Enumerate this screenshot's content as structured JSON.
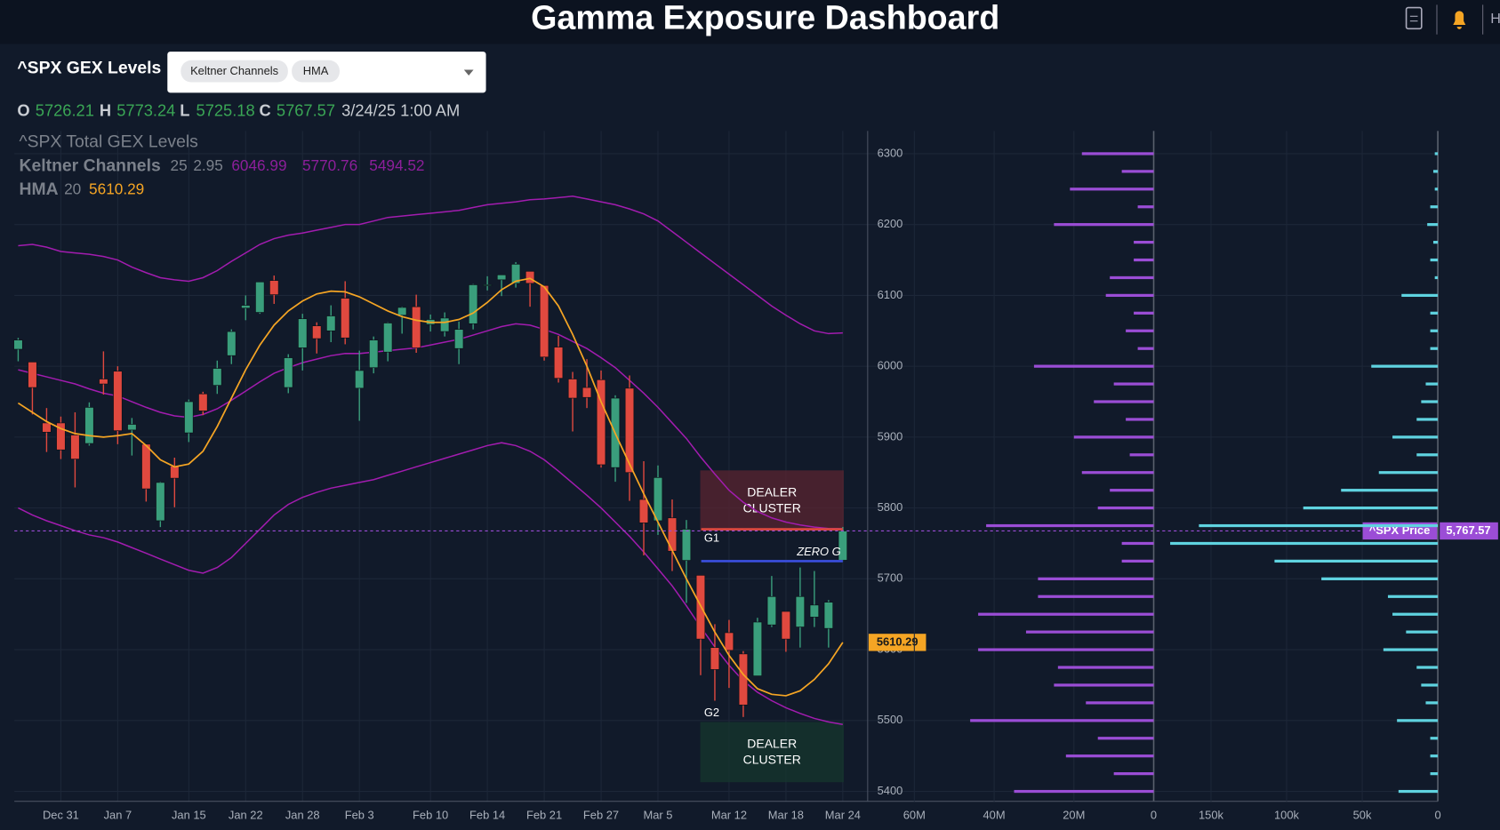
{
  "header": {
    "title": "Gamma Exposure Dashboard",
    "menu_letter": "H"
  },
  "toolbar": {
    "title": "^SPX GEX Levels",
    "indicators": [
      {
        "name": "Keltner Channels",
        "params": [
          25,
          2.95
        ]
      },
      {
        "name": "HMA",
        "params": [
          20
        ]
      }
    ]
  },
  "ohlc_bar": {
    "labels": [
      "O",
      "H",
      "L",
      "C"
    ],
    "datetime": "3/24/25 1:00 AM"
  },
  "chart_data": [
    {
      "type": "candlestick",
      "title": "^SPX Total GEX Levels",
      "categories": [
        null,
        null,
        null,
        "Dec 31",
        null,
        null,
        null,
        "Jan 7",
        null,
        null,
        null,
        null,
        "Jan 15",
        null,
        null,
        null,
        "Jan 22",
        null,
        null,
        null,
        "Jan 28",
        null,
        null,
        null,
        "Feb 3",
        null,
        null,
        null,
        null,
        "Feb 10",
        null,
        null,
        null,
        "Feb 14",
        null,
        null,
        null,
        "Feb 21",
        null,
        null,
        null,
        "Feb 27",
        null,
        null,
        null,
        "Mar 5",
        null,
        null,
        null,
        null,
        "Mar 12",
        null,
        null,
        null,
        "Mar 18",
        null,
        null,
        null,
        "Mar 24"
      ],
      "open": [
        6024,
        6006,
        5920,
        5920,
        5903,
        5891,
        5982,
        5993,
        5910,
        5890,
        5782,
        5859,
        5906,
        5961,
        5973,
        6015,
        6082,
        6076,
        6121,
        5970,
        6026,
        6057,
        6050,
        6096,
        5969,
        5998,
        6020,
        6072,
        6084,
        6059,
        6049,
        6025,
        6060,
        6115,
        6122,
        6117,
        6134,
        6114,
        6027,
        5982,
        5970,
        5981,
        5857,
        5969,
        5812,
        5782,
        5786,
        5726,
        5705,
        5603,
        5624,
        5594,
        5563,
        5635,
        5654,
        5632,
        5646,
        5630,
        5726.21
      ],
      "high": [
        6040,
        6006,
        5941,
        5929,
        5935,
        5949,
        6021,
        6000,
        5927,
        5890,
        5837,
        5871,
        5953,
        5964,
        6008,
        6052,
        6100,
        6119,
        6128,
        6017,
        6074,
        6062,
        6086,
        6120,
        6022,
        6042,
        6062,
        6084,
        6101,
        6073,
        6076,
        6063,
        6116,
        6127,
        6129,
        6147,
        6134,
        6114,
        6043,
        5992,
        6010,
        5994,
        5959,
        5987,
        5866,
        5860,
        5812,
        5783,
        5705,
        5636,
        5642,
        5598,
        5645,
        5704,
        5654,
        5716,
        5711,
        5670,
        5773.24
      ],
      "low": [
        6007,
        5932,
        5879,
        5869,
        5829,
        5888,
        5960,
        5890,
        5874,
        5809,
        5773,
        5801,
        5893,
        5931,
        5961,
        6003,
        6065,
        6074,
        6088,
        5962,
        5994,
        6018,
        6034,
        6031,
        5923,
        5990,
        6007,
        6046,
        6019,
        6049,
        6042,
        6003,
        6052,
        6107,
        6099,
        6111,
        6084,
        6008,
        5977,
        5908,
        5941,
        5857,
        5837,
        5810,
        5733,
        5762,
        5711,
        5666,
        5564,
        5528,
        5546,
        5505,
        5563,
        5632,
        5597,
        5603,
        5632,
        5603,
        5725.18
      ],
      "close": [
        6037,
        5970,
        5907,
        5882,
        5869,
        5942,
        5975,
        5909,
        5918,
        5827,
        5836,
        5842,
        5950,
        5937,
        5997,
        6049,
        6086,
        6119,
        6101,
        6012,
        6067,
        6039,
        6071,
        6040,
        5994,
        6037,
        6061,
        6083,
        6026,
        6066,
        6068,
        6052,
        6115,
        6115,
        6129,
        6144,
        6117,
        6013,
        5983,
        5955,
        5956,
        5861,
        5955,
        5850,
        5779,
        5843,
        5739,
        5770,
        5615,
        5572,
        5599,
        5522,
        5639,
        5675,
        5615,
        5675,
        5663,
        5667,
        5767.57
      ],
      "up_color": "#3a9e7c",
      "down_color": "#e0493f",
      "ylim": [
        5386,
        6332
      ],
      "yticks": [
        5400,
        5500,
        5600,
        5700,
        5800,
        5900,
        6000,
        6100,
        6200,
        6300
      ],
      "grid": true,
      "indicators": [
        {
          "color": "#a21caf",
          "upper": [
            6170,
            6172,
            6168,
            6162,
            6160,
            6158,
            6155,
            6150,
            6140,
            6132,
            6125,
            6122,
            6120,
            6125,
            6135,
            6148,
            6160,
            6172,
            6180,
            6185,
            6188,
            6192,
            6196,
            6200,
            6200,
            6205,
            6210,
            6212,
            6214,
            6216,
            6218,
            6220,
            6224,
            6228,
            6230,
            6232,
            6235,
            6236,
            6238,
            6240,
            6236,
            6232,
            6228,
            6222,
            6215,
            6205,
            6190,
            6175,
            6160,
            6145,
            6130,
            6115,
            6100,
            6085,
            6072,
            6060,
            6050,
            6046,
            6046.99
          ],
          "middle": [
            5995,
            5990,
            5985,
            5980,
            5975,
            5968,
            5962,
            5958,
            5950,
            5942,
            5935,
            5930,
            5928,
            5932,
            5940,
            5952,
            5965,
            5978,
            5990,
            5998,
            6005,
            6010,
            6015,
            6018,
            6018,
            6020,
            6022,
            6024,
            6026,
            6030,
            6034,
            6038,
            6044,
            6050,
            6056,
            6060,
            6058,
            6052,
            6045,
            6035,
            6025,
            6012,
            5998,
            5980,
            5962,
            5942,
            5920,
            5898,
            5872,
            5848,
            5825,
            5808,
            5795,
            5786,
            5780,
            5776,
            5773,
            5771,
            5770.76
          ],
          "lower": [
            5800,
            5790,
            5782,
            5775,
            5768,
            5762,
            5758,
            5752,
            5744,
            5736,
            5728,
            5720,
            5712,
            5708,
            5716,
            5730,
            5750,
            5770,
            5790,
            5805,
            5815,
            5822,
            5828,
            5832,
            5836,
            5840,
            5846,
            5852,
            5858,
            5864,
            5870,
            5876,
            5882,
            5888,
            5892,
            5888,
            5880,
            5868,
            5852,
            5835,
            5818,
            5800,
            5780,
            5760,
            5738,
            5714,
            5690,
            5662,
            5632,
            5604,
            5578,
            5556,
            5540,
            5528,
            5518,
            5510,
            5503,
            5498,
            5494.52
          ]
        },
        {
          "color": "#f5a524",
          "values": [
            5948,
            5935,
            5922,
            5912,
            5905,
            5902,
            5900,
            5902,
            5905,
            5888,
            5868,
            5858,
            5862,
            5880,
            5915,
            5955,
            5995,
            6030,
            6058,
            6078,
            6092,
            6102,
            6106,
            6105,
            6098,
            6088,
            6078,
            6070,
            6065,
            6062,
            6062,
            6066,
            6075,
            6090,
            6108,
            6120,
            6124,
            6112,
            6085,
            6045,
            6000,
            5950,
            5905,
            5862,
            5820,
            5780,
            5740,
            5700,
            5662,
            5625,
            5592,
            5565,
            5545,
            5537,
            5535,
            5542,
            5558,
            5580,
            5610.29
          ]
        }
      ],
      "price": {
        "name": "^SPX Price",
        "value": 5767.57,
        "label": "5,767.57",
        "color": "#9b4dd6"
      },
      "zones": [
        {
          "lines": [
            "DEALER",
            "CLUSTER"
          ],
          "range": [
            5768,
            5853
          ],
          "color": "#5a2430"
        },
        {
          "lines": [
            "DEALER",
            "CLUSTER"
          ],
          "range": [
            5413,
            5498
          ],
          "color": "#15372d"
        }
      ],
      "levels": [
        {
          "label": "G1",
          "value": 5770,
          "color": "#e0493f"
        },
        {
          "label": "ZERO G",
          "value": 5725,
          "color": "#3b4fe0"
        },
        {
          "label": "G2",
          "value": 5510,
          "color": null
        }
      ]
    },
    {
      "type": "bar",
      "orientation": "horizontal",
      "color": "#9b4dd6",
      "y": [
        6300,
        6275,
        6250,
        6225,
        6200,
        6175,
        6150,
        6125,
        6100,
        6075,
        6050,
        6025,
        6000,
        5975,
        5950,
        5925,
        5900,
        5875,
        5850,
        5825,
        5800,
        5775,
        5750,
        5725,
        5700,
        5675,
        5650,
        5625,
        5600,
        5575,
        5550,
        5525,
        5500,
        5475,
        5450,
        5425,
        5400
      ],
      "values": [
        18000000,
        8000000,
        21000000,
        4000000,
        25000000,
        5000000,
        5000000,
        11000000,
        12000000,
        5000000,
        7000000,
        4000000,
        30000000,
        10000000,
        15000000,
        7000000,
        20000000,
        6000000,
        18000000,
        11000000,
        14000000,
        42000000,
        8000000,
        8000000,
        29000000,
        29000000,
        44000000,
        32000000,
        44000000,
        24000000,
        25000000,
        17000000,
        46000000,
        14000000,
        22000000,
        10000000,
        35000000
      ],
      "ylim": [
        5386,
        6332
      ],
      "xlim": [
        0,
        70500000
      ],
      "x_reversed": true,
      "xticks": [
        {
          "value": 60000000,
          "label": "60M"
        },
        {
          "value": 40000000,
          "label": "40M"
        },
        {
          "value": 20000000,
          "label": "20M"
        },
        0
      ]
    },
    {
      "type": "bar",
      "orientation": "horizontal",
      "color": "#5fd3e0",
      "y": [
        6300,
        6275,
        6250,
        6225,
        6200,
        6175,
        6150,
        6125,
        6100,
        6075,
        6050,
        6025,
        6000,
        5975,
        5950,
        5925,
        5900,
        5875,
        5850,
        5825,
        5800,
        5775,
        5750,
        5725,
        5700,
        5675,
        5650,
        5625,
        5600,
        5575,
        5550,
        5525,
        5500,
        5475,
        5450,
        5425,
        5400
      ],
      "values": [
        2000,
        3000,
        2000,
        5000,
        7000,
        3000,
        5000,
        2000,
        24000,
        5000,
        5000,
        5000,
        44000,
        8000,
        11000,
        14000,
        30000,
        14000,
        39000,
        64000,
        89000,
        158000,
        177000,
        108000,
        77000,
        33000,
        30000,
        21000,
        36000,
        14000,
        11000,
        8000,
        27000,
        5000,
        5000,
        5000,
        26000
      ],
      "ylim": [
        5386,
        6332
      ],
      "xlim": [
        0,
        186000
      ],
      "x_reversed": true,
      "xticks": [
        {
          "value": 150000,
          "label": "150k"
        },
        {
          "value": 100000,
          "label": "100k"
        },
        {
          "value": 50000,
          "label": "50k"
        },
        0
      ]
    }
  ]
}
